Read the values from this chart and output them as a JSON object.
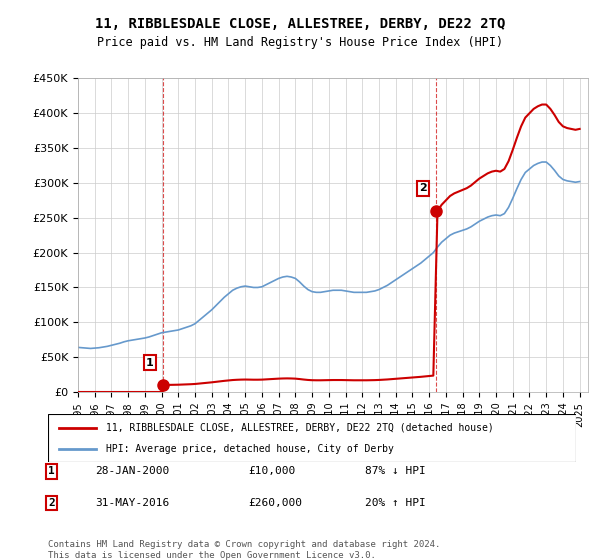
{
  "title": "11, RIBBLESDALE CLOSE, ALLESTREE, DERBY, DE22 2TQ",
  "subtitle": "Price paid vs. HM Land Registry's House Price Index (HPI)",
  "ylabel_ticks": [
    "£0",
    "£50K",
    "£100K",
    "£150K",
    "£200K",
    "£250K",
    "£300K",
    "£350K",
    "£400K",
    "£450K"
  ],
  "ylim": [
    0,
    450000
  ],
  "xlim_start": 1995.0,
  "xlim_end": 2025.5,
  "sale1_x": 2000.07,
  "sale1_y": 10000,
  "sale2_x": 2016.42,
  "sale2_y": 260000,
  "hpi_color": "#6699cc",
  "property_color": "#cc0000",
  "legend_label1": "11, RIBBLESDALE CLOSE, ALLESTREE, DERBY, DE22 2TQ (detached house)",
  "legend_label2": "HPI: Average price, detached house, City of Derby",
  "annotation1_label": "1",
  "annotation1_date": "28-JAN-2000",
  "annotation1_price": "£10,000",
  "annotation1_hpi": "87% ↓ HPI",
  "annotation2_label": "2",
  "annotation2_date": "31-MAY-2016",
  "annotation2_price": "£260,000",
  "annotation2_hpi": "20% ↑ HPI",
  "footer": "Contains HM Land Registry data © Crown copyright and database right 2024.\nThis data is licensed under the Open Government Licence v3.0.",
  "hpi_years": [
    1995.0,
    1995.25,
    1995.5,
    1995.75,
    1996.0,
    1996.25,
    1996.5,
    1996.75,
    1997.0,
    1997.25,
    1997.5,
    1997.75,
    1998.0,
    1998.25,
    1998.5,
    1998.75,
    1999.0,
    1999.25,
    1999.5,
    1999.75,
    2000.0,
    2000.25,
    2000.5,
    2000.75,
    2001.0,
    2001.25,
    2001.5,
    2001.75,
    2002.0,
    2002.25,
    2002.5,
    2002.75,
    2003.0,
    2003.25,
    2003.5,
    2003.75,
    2004.0,
    2004.25,
    2004.5,
    2004.75,
    2005.0,
    2005.25,
    2005.5,
    2005.75,
    2006.0,
    2006.25,
    2006.5,
    2006.75,
    2007.0,
    2007.25,
    2007.5,
    2007.75,
    2008.0,
    2008.25,
    2008.5,
    2008.75,
    2009.0,
    2009.25,
    2009.5,
    2009.75,
    2010.0,
    2010.25,
    2010.5,
    2010.75,
    2011.0,
    2011.25,
    2011.5,
    2011.75,
    2012.0,
    2012.25,
    2012.5,
    2012.75,
    2013.0,
    2013.25,
    2013.5,
    2013.75,
    2014.0,
    2014.25,
    2014.5,
    2014.75,
    2015.0,
    2015.25,
    2015.5,
    2015.75,
    2016.0,
    2016.25,
    2016.5,
    2016.75,
    2017.0,
    2017.25,
    2017.5,
    2017.75,
    2018.0,
    2018.25,
    2018.5,
    2018.75,
    2019.0,
    2019.25,
    2019.5,
    2019.75,
    2020.0,
    2020.25,
    2020.5,
    2020.75,
    2021.0,
    2021.25,
    2021.5,
    2021.75,
    2022.0,
    2022.25,
    2022.5,
    2022.75,
    2023.0,
    2023.25,
    2023.5,
    2023.75,
    2024.0,
    2024.25,
    2024.5,
    2024.75,
    2025.0
  ],
  "hpi_values": [
    64000,
    63500,
    63000,
    62500,
    63000,
    63500,
    64500,
    65500,
    67000,
    68500,
    70000,
    72000,
    73500,
    74500,
    75500,
    76500,
    77500,
    79000,
    81000,
    83000,
    85000,
    86000,
    87000,
    88000,
    89000,
    91000,
    93000,
    95000,
    98000,
    103000,
    108000,
    113000,
    118000,
    124000,
    130000,
    136000,
    141000,
    146000,
    149000,
    151000,
    152000,
    151000,
    150000,
    150000,
    151000,
    154000,
    157000,
    160000,
    163000,
    165000,
    166000,
    165000,
    163000,
    158000,
    152000,
    147000,
    144000,
    143000,
    143000,
    144000,
    145000,
    146000,
    146000,
    146000,
    145000,
    144000,
    143000,
    143000,
    143000,
    143000,
    144000,
    145000,
    147000,
    150000,
    153000,
    157000,
    161000,
    165000,
    169000,
    173000,
    177000,
    181000,
    185000,
    190000,
    195000,
    200000,
    208000,
    215000,
    220000,
    225000,
    228000,
    230000,
    232000,
    234000,
    237000,
    241000,
    245000,
    248000,
    251000,
    253000,
    254000,
    253000,
    256000,
    265000,
    278000,
    292000,
    305000,
    315000,
    320000,
    325000,
    328000,
    330000,
    330000,
    325000,
    318000,
    310000,
    305000,
    303000,
    302000,
    301000,
    302000
  ]
}
